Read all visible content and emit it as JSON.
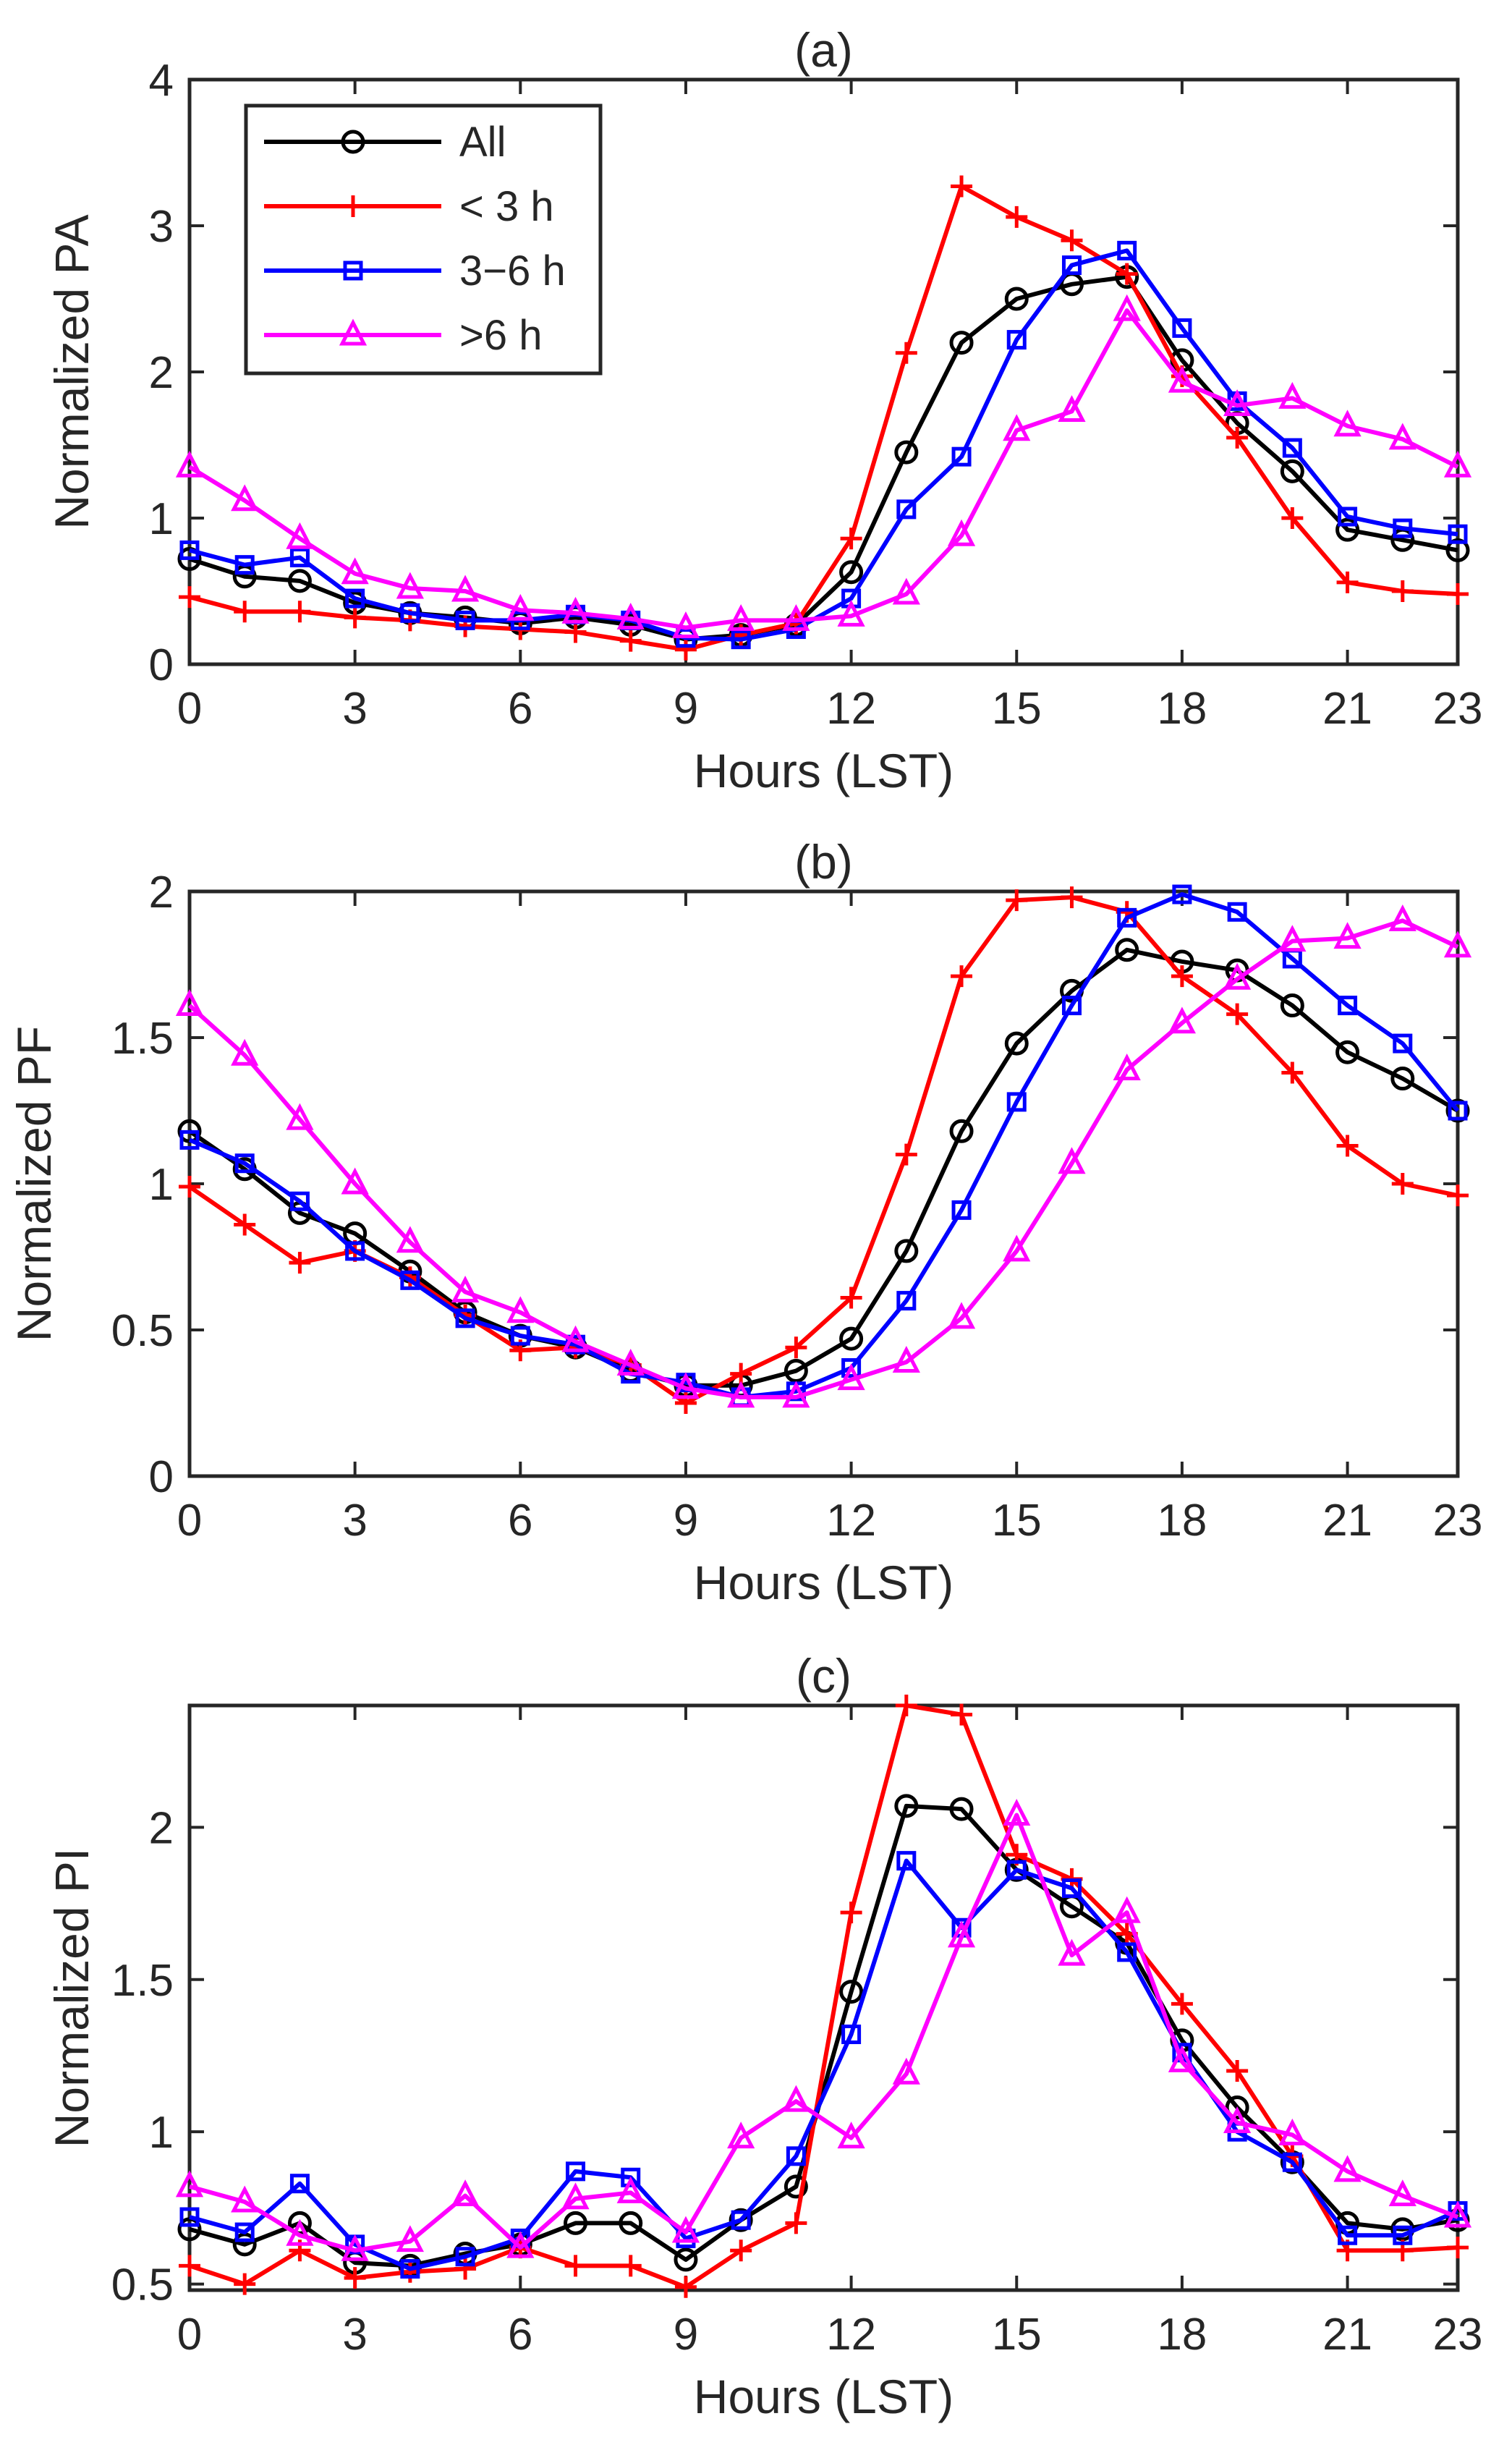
{
  "legend": [
    {
      "key": "all",
      "label": "All",
      "color": "#000000",
      "marker": "circle"
    },
    {
      "key": "lt3",
      "label": "< 3 h",
      "color": "#FF0000",
      "marker": "plus"
    },
    {
      "key": "m36",
      "label": "3−6 h",
      "color": "#0000FF",
      "marker": "square"
    },
    {
      "key": "gt6",
      "label": ">6 h",
      "color": "#FF00FF",
      "marker": "triangle"
    }
  ],
  "chart_data": [
    {
      "type": "line",
      "title": "(a)",
      "xlabel": "Hours (LST)",
      "ylabel": "Normalized PA",
      "xlim": [
        0,
        23
      ],
      "ylim": [
        0,
        4
      ],
      "xticks": [
        0,
        3,
        6,
        9,
        12,
        15,
        18,
        21,
        23
      ],
      "yticks": [
        0,
        1,
        2,
        3,
        4
      ],
      "ytick_labels": [
        "0",
        "1",
        "2",
        "3",
        "4"
      ],
      "x": [
        0,
        1,
        2,
        3,
        4,
        5,
        6,
        7,
        8,
        9,
        10,
        11,
        12,
        13,
        14,
        15,
        16,
        17,
        18,
        19,
        20,
        21,
        22,
        23
      ],
      "series": [
        {
          "name": "All",
          "values": [
            0.72,
            0.6,
            0.57,
            0.42,
            0.35,
            0.32,
            0.28,
            0.32,
            0.27,
            0.17,
            0.2,
            0.27,
            0.63,
            1.45,
            2.2,
            2.5,
            2.6,
            2.65,
            2.08,
            1.65,
            1.32,
            0.92,
            0.85,
            0.78
          ]
        },
        {
          "name": "< 3 h",
          "values": [
            0.46,
            0.36,
            0.36,
            0.32,
            0.3,
            0.26,
            0.24,
            0.22,
            0.16,
            0.1,
            0.2,
            0.28,
            0.86,
            2.13,
            3.27,
            3.06,
            2.9,
            2.67,
            1.97,
            1.55,
            1.0,
            0.56,
            0.5,
            0.48
          ]
        },
        {
          "name": "3−6 h",
          "values": [
            0.78,
            0.68,
            0.73,
            0.45,
            0.35,
            0.3,
            0.3,
            0.34,
            0.3,
            0.18,
            0.17,
            0.24,
            0.45,
            1.06,
            1.42,
            2.22,
            2.73,
            2.83,
            2.3,
            1.8,
            1.48,
            1.01,
            0.93,
            0.89
          ]
        },
        {
          "name": ">6 h",
          "values": [
            1.35,
            1.12,
            0.86,
            0.62,
            0.52,
            0.5,
            0.37,
            0.35,
            0.31,
            0.25,
            0.3,
            0.3,
            0.33,
            0.48,
            0.88,
            1.6,
            1.73,
            2.42,
            1.93,
            1.77,
            1.82,
            1.63,
            1.54,
            1.35
          ]
        }
      ]
    },
    {
      "type": "line",
      "title": "(b)",
      "xlabel": "Hours (LST)",
      "ylabel": "Normalized PF",
      "xlim": [
        0,
        23
      ],
      "ylim": [
        0,
        2
      ],
      "xticks": [
        0,
        3,
        6,
        9,
        12,
        15,
        18,
        21,
        23
      ],
      "yticks": [
        0,
        0.5,
        1,
        1.5,
        2
      ],
      "ytick_labels": [
        "0",
        "0.5",
        "1",
        "1.5",
        "2"
      ],
      "x": [
        0,
        1,
        2,
        3,
        4,
        5,
        6,
        7,
        8,
        9,
        10,
        11,
        12,
        13,
        14,
        15,
        16,
        17,
        18,
        19,
        20,
        21,
        22,
        23
      ],
      "series": [
        {
          "name": "All",
          "values": [
            1.18,
            1.05,
            0.9,
            0.83,
            0.7,
            0.56,
            0.48,
            0.44,
            0.36,
            0.31,
            0.31,
            0.36,
            0.47,
            0.77,
            1.18,
            1.48,
            1.66,
            1.8,
            1.76,
            1.73,
            1.61,
            1.45,
            1.36,
            1.25
          ]
        },
        {
          "name": "< 3 h",
          "values": [
            0.99,
            0.86,
            0.73,
            0.77,
            0.68,
            0.55,
            0.43,
            0.44,
            0.38,
            0.25,
            0.35,
            0.44,
            0.61,
            1.1,
            1.71,
            1.97,
            1.98,
            1.93,
            1.71,
            1.58,
            1.38,
            1.13,
            1.0,
            0.96
          ]
        },
        {
          "name": "3−6 h",
          "values": [
            1.15,
            1.07,
            0.94,
            0.77,
            0.67,
            0.54,
            0.48,
            0.45,
            0.35,
            0.32,
            0.27,
            0.29,
            0.37,
            0.6,
            0.91,
            1.28,
            1.61,
            1.91,
            1.99,
            1.93,
            1.77,
            1.61,
            1.48,
            1.25
          ]
        },
        {
          "name": ">6 h",
          "values": [
            1.61,
            1.44,
            1.22,
            1.0,
            0.8,
            0.63,
            0.56,
            0.46,
            0.38,
            0.3,
            0.27,
            0.27,
            0.33,
            0.39,
            0.54,
            0.77,
            1.07,
            1.39,
            1.55,
            1.7,
            1.83,
            1.84,
            1.9,
            1.81
          ]
        }
      ]
    },
    {
      "type": "line",
      "title": "(c)",
      "xlabel": "Hours (LST)",
      "ylabel": "Normalized PI",
      "xlim": [
        0,
        23
      ],
      "ylim": [
        0.48,
        2.4
      ],
      "xticks": [
        0,
        3,
        6,
        9,
        12,
        15,
        18,
        21,
        23
      ],
      "yticks": [
        0.5,
        1,
        1.5,
        2
      ],
      "ytick_labels": [
        "0.5",
        "1",
        "1.5",
        "2"
      ],
      "x": [
        0,
        1,
        2,
        3,
        4,
        5,
        6,
        7,
        8,
        9,
        10,
        11,
        12,
        13,
        14,
        15,
        16,
        17,
        18,
        19,
        20,
        21,
        22,
        23
      ],
      "series": [
        {
          "name": "All",
          "values": [
            0.68,
            0.63,
            0.7,
            0.57,
            0.56,
            0.6,
            0.63,
            0.7,
            0.7,
            0.58,
            0.71,
            0.82,
            1.46,
            2.07,
            2.06,
            1.86,
            1.74,
            1.62,
            1.3,
            1.08,
            0.9,
            0.7,
            0.68,
            0.71
          ]
        },
        {
          "name": "< 3 h",
          "values": [
            0.56,
            0.5,
            0.61,
            0.52,
            0.54,
            0.55,
            0.62,
            0.56,
            0.56,
            0.49,
            0.61,
            0.7,
            1.72,
            2.4,
            2.37,
            1.91,
            1.83,
            1.65,
            1.42,
            1.2,
            0.92,
            0.61,
            0.61,
            0.62
          ]
        },
        {
          "name": "3−6 h",
          "values": [
            0.72,
            0.67,
            0.83,
            0.63,
            0.55,
            0.59,
            0.65,
            0.87,
            0.85,
            0.65,
            0.71,
            0.92,
            1.32,
            1.89,
            1.67,
            1.86,
            1.8,
            1.59,
            1.26,
            1.0,
            0.9,
            0.66,
            0.66,
            0.74
          ]
        },
        {
          "name": ">6 h",
          "values": [
            0.82,
            0.77,
            0.66,
            0.61,
            0.64,
            0.79,
            0.62,
            0.78,
            0.8,
            0.67,
            0.98,
            1.1,
            0.98,
            1.19,
            1.64,
            2.04,
            1.58,
            1.72,
            1.23,
            1.03,
            0.99,
            0.87,
            0.79,
            0.72
          ]
        }
      ]
    }
  ]
}
